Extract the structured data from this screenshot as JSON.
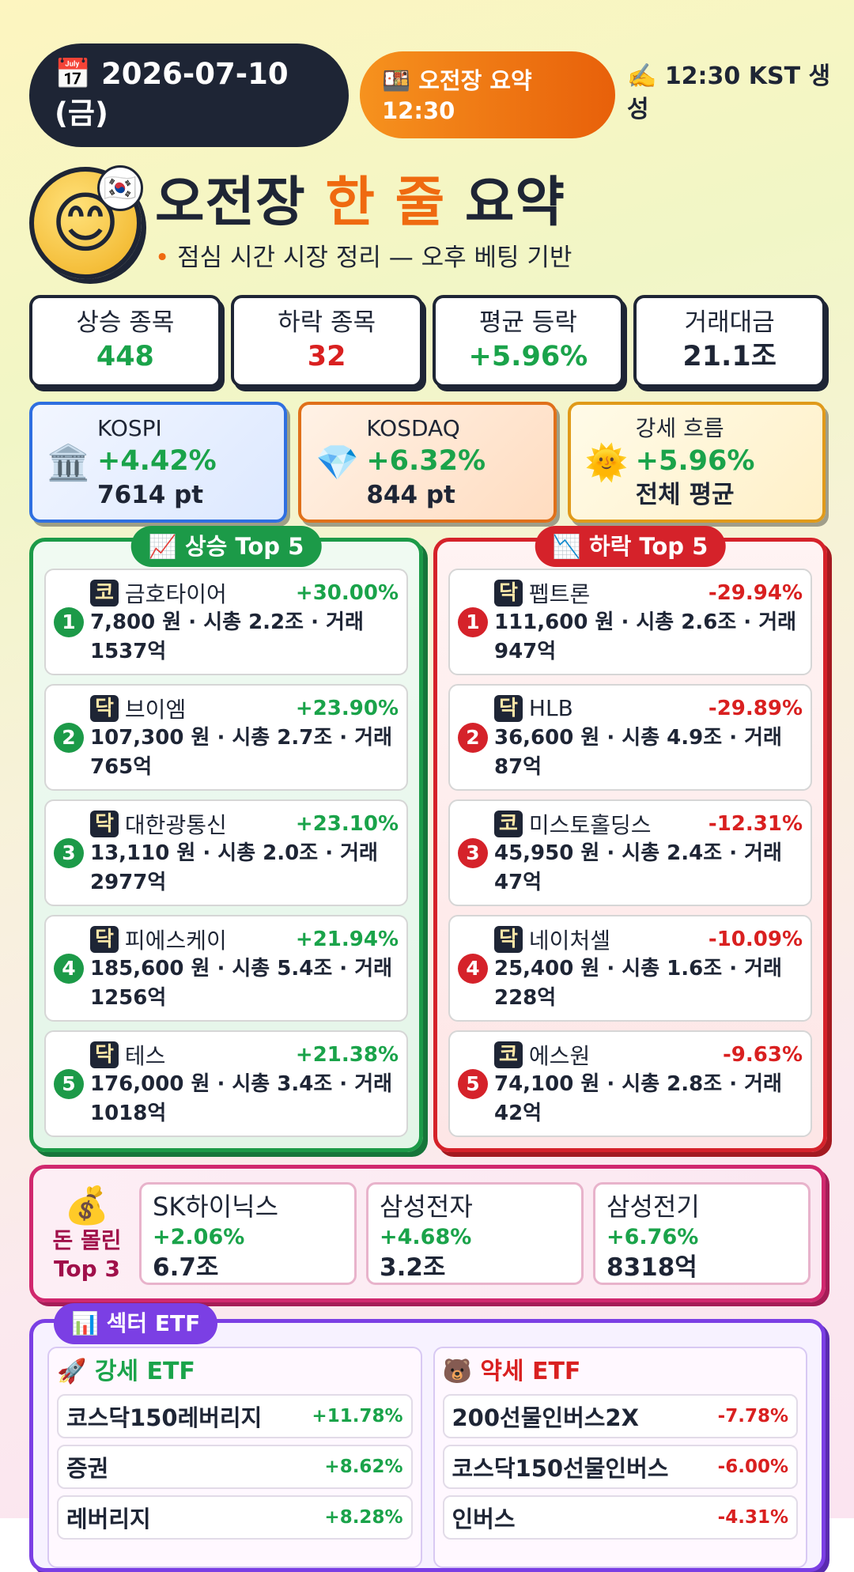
{
  "header": {
    "date": "2026-07-10 (금)",
    "session": "오전장 요약 12:30",
    "generated": "12:30 KST 생성"
  },
  "title": {
    "part1": "오전장",
    "highlight": "한 줄",
    "part2": "요약",
    "subtitle": "점심 시간 시장 정리 — 오후 베팅 기반"
  },
  "stats": [
    {
      "label": "상승 종목",
      "value": "448"
    },
    {
      "label": "하락 종목",
      "value": "32"
    },
    {
      "label": "평균 등락",
      "value": "+5.96%"
    },
    {
      "label": "거래대금",
      "value": "21.1조"
    }
  ],
  "indices": [
    {
      "name": "KOSPI",
      "change": "+4.42%",
      "value": "7614 pt"
    },
    {
      "name": "KOSDAQ",
      "change": "+6.32%",
      "value": "844 pt"
    },
    {
      "name": "강세 흐름",
      "change": "+5.96%",
      "value": "전체 평균"
    }
  ],
  "gainers": {
    "title": "상승 Top 5",
    "items": [
      {
        "rank": "1",
        "market": "코",
        "name": "금호타이어",
        "change": "+30.00%",
        "detail": "7,800 원 · 시총 2.2조 · 거래 1537억"
      },
      {
        "rank": "2",
        "market": "닥",
        "name": "브이엠",
        "change": "+23.90%",
        "detail": "107,300 원 · 시총 2.7조 · 거래 765억"
      },
      {
        "rank": "3",
        "market": "닥",
        "name": "대한광통신",
        "change": "+23.10%",
        "detail": "13,110 원 · 시총 2.0조 · 거래 2977억"
      },
      {
        "rank": "4",
        "market": "닥",
        "name": "피에스케이",
        "change": "+21.94%",
        "detail": "185,600 원 · 시총 5.4조 · 거래 1256억"
      },
      {
        "rank": "5",
        "market": "닥",
        "name": "테스",
        "change": "+21.38%",
        "detail": "176,000 원 · 시총 3.4조 · 거래 1018억"
      }
    ]
  },
  "losers": {
    "title": "하락 Top 5",
    "items": [
      {
        "rank": "1",
        "market": "닥",
        "name": "펩트론",
        "change": "-29.94%",
        "detail": "111,600 원 · 시총 2.6조 · 거래 947억"
      },
      {
        "rank": "2",
        "market": "닥",
        "name": "HLB",
        "change": "-29.89%",
        "detail": "36,600 원 · 시총 4.9조 · 거래 87억"
      },
      {
        "rank": "3",
        "market": "코",
        "name": "미스토홀딩스",
        "change": "-12.31%",
        "detail": "45,950 원 · 시총 2.4조 · 거래 47억"
      },
      {
        "rank": "4",
        "market": "닥",
        "name": "네이처셀",
        "change": "-10.09%",
        "detail": "25,400 원 · 시총 1.6조 · 거래 228억"
      },
      {
        "rank": "5",
        "market": "코",
        "name": "에스원",
        "change": "-9.63%",
        "detail": "74,100 원 · 시총 2.8조 · 거래 42억"
      }
    ]
  },
  "money": {
    "title": [
      "돈 몰린",
      "Top 3"
    ],
    "items": [
      {
        "name": "SK하이닉스",
        "change": "+2.06%",
        "amount": "6.7조"
      },
      {
        "name": "삼성전자",
        "change": "+4.68%",
        "amount": "3.2조"
      },
      {
        "name": "삼성전기",
        "change": "+6.76%",
        "amount": "8318억"
      }
    ]
  },
  "etf": {
    "title": "섹터 ETF",
    "strong": {
      "title": "강세 ETF",
      "items": [
        {
          "name": "코스닥150레버리지",
          "change": "+11.78%"
        },
        {
          "name": "증권",
          "change": "+8.62%"
        },
        {
          "name": "레버리지",
          "change": "+8.28%"
        }
      ]
    },
    "weak": {
      "title": "약세 ETF",
      "items": [
        {
          "name": "200선물인버스2X",
          "change": "-7.78%"
        },
        {
          "name": "코스닥150선물인버스",
          "change": "-6.00%"
        },
        {
          "name": "인버스",
          "change": "-4.31%"
        }
      ]
    }
  }
}
